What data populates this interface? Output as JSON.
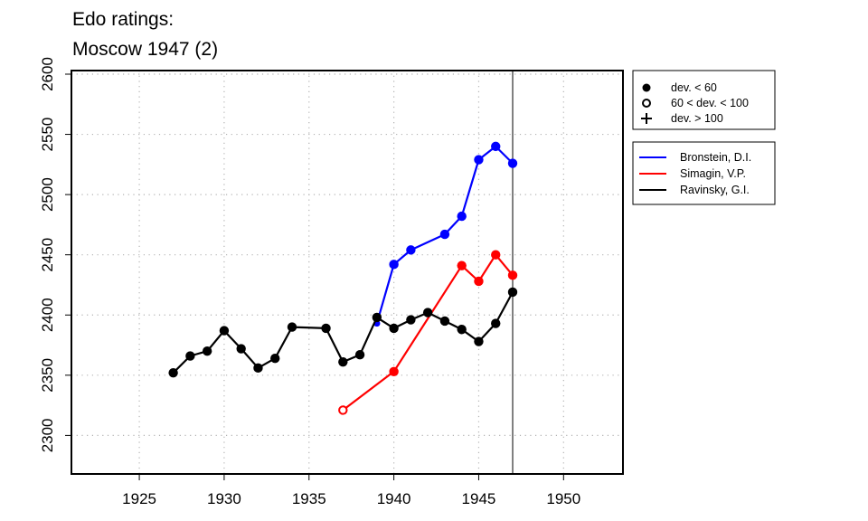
{
  "title_lines": [
    "Edo ratings:",
    "Moscow 1947 (2)"
  ],
  "chart_data": {
    "type": "line",
    "title": "Edo ratings: Moscow 1947 (2)",
    "xlim": [
      1921,
      1953.5
    ],
    "ylim": [
      2268,
      2603
    ],
    "x_ticks": [
      1925,
      1930,
      1935,
      1940,
      1945,
      1950
    ],
    "y_ticks": [
      2300,
      2350,
      2400,
      2450,
      2500,
      2550,
      2600
    ],
    "grid": true,
    "reference_line_x": 1947,
    "marker_legend": [
      {
        "marker": "filled-circle",
        "label": "dev. < 60"
      },
      {
        "marker": "open-circle",
        "label": "60 < dev. < 100"
      },
      {
        "marker": "plus",
        "label": "dev. > 100"
      }
    ],
    "series": [
      {
        "name": "Bronstein, D.I.",
        "color": "#0000ff",
        "points": [
          {
            "x": 1939,
            "y": 2393,
            "marker": "filled-circle",
            "size": "small"
          },
          {
            "x": 1940,
            "y": 2442,
            "marker": "filled-circle"
          },
          {
            "x": 1941,
            "y": 2454,
            "marker": "filled-circle"
          },
          {
            "x": 1943,
            "y": 2467,
            "marker": "filled-circle"
          },
          {
            "x": 1944,
            "y": 2482,
            "marker": "filled-circle"
          },
          {
            "x": 1945,
            "y": 2529,
            "marker": "filled-circle"
          },
          {
            "x": 1946,
            "y": 2540,
            "marker": "filled-circle"
          },
          {
            "x": 1947,
            "y": 2526,
            "marker": "filled-circle"
          }
        ]
      },
      {
        "name": "Simagin, V.P.",
        "color": "#ff0000",
        "points": [
          {
            "x": 1937,
            "y": 2321,
            "marker": "open-circle"
          },
          {
            "x": 1940,
            "y": 2353,
            "marker": "filled-circle"
          },
          {
            "x": 1944,
            "y": 2441,
            "marker": "filled-circle"
          },
          {
            "x": 1945,
            "y": 2428,
            "marker": "filled-circle"
          },
          {
            "x": 1946,
            "y": 2450,
            "marker": "filled-circle"
          },
          {
            "x": 1947,
            "y": 2433,
            "marker": "filled-circle"
          }
        ]
      },
      {
        "name": "Ravinsky, G.I.",
        "color": "#000000",
        "points": [
          {
            "x": 1927,
            "y": 2352,
            "marker": "filled-circle"
          },
          {
            "x": 1928,
            "y": 2366,
            "marker": "filled-circle"
          },
          {
            "x": 1929,
            "y": 2370,
            "marker": "filled-circle"
          },
          {
            "x": 1930,
            "y": 2387,
            "marker": "filled-circle"
          },
          {
            "x": 1931,
            "y": 2372,
            "marker": "filled-circle"
          },
          {
            "x": 1932,
            "y": 2356,
            "marker": "filled-circle"
          },
          {
            "x": 1933,
            "y": 2364,
            "marker": "filled-circle"
          },
          {
            "x": 1934,
            "y": 2390,
            "marker": "filled-circle"
          },
          {
            "x": 1936,
            "y": 2389,
            "marker": "filled-circle"
          },
          {
            "x": 1937,
            "y": 2361,
            "marker": "filled-circle"
          },
          {
            "x": 1938,
            "y": 2367,
            "marker": "filled-circle"
          },
          {
            "x": 1939,
            "y": 2398,
            "marker": "filled-circle"
          },
          {
            "x": 1940,
            "y": 2389,
            "marker": "filled-circle"
          },
          {
            "x": 1941,
            "y": 2396,
            "marker": "filled-circle"
          },
          {
            "x": 1942,
            "y": 2402,
            "marker": "filled-circle"
          },
          {
            "x": 1943,
            "y": 2395,
            "marker": "filled-circle"
          },
          {
            "x": 1944,
            "y": 2388,
            "marker": "filled-circle"
          },
          {
            "x": 1945,
            "y": 2378,
            "marker": "filled-circle"
          },
          {
            "x": 1946,
            "y": 2393,
            "marker": "filled-circle"
          },
          {
            "x": 1947,
            "y": 2419,
            "marker": "filled-circle"
          }
        ]
      }
    ]
  }
}
